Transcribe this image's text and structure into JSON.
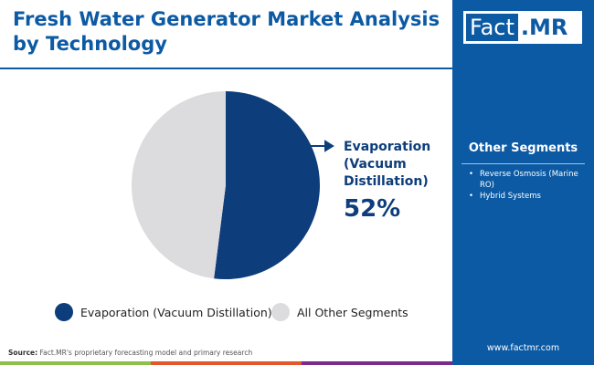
{
  "title": "Fresh Water Generator Market Analysis by Technology",
  "logo": {
    "part1": "Fact",
    "part2": ".MR"
  },
  "sidebar": {
    "heading": "Other Segments",
    "items": [
      "Reverse Osmosis (Marine RO)",
      "Hybrid Systems"
    ],
    "website": "www.factmr.com"
  },
  "source": {
    "label": "Source:",
    "text": " Fact.MR's proprietary forecasting model and primary research"
  },
  "chart_data": {
    "type": "pie",
    "slices": [
      {
        "name": "Evaporation (Vacuum Distillation)",
        "value": 52,
        "color": "#0d3d7a"
      },
      {
        "name": "All Other Segments",
        "value": 48,
        "color": "#dcdcdf"
      }
    ],
    "callout": {
      "label": "Evaporation (Vacuum Distillation)",
      "value": "52%"
    },
    "legend": "bottom"
  }
}
